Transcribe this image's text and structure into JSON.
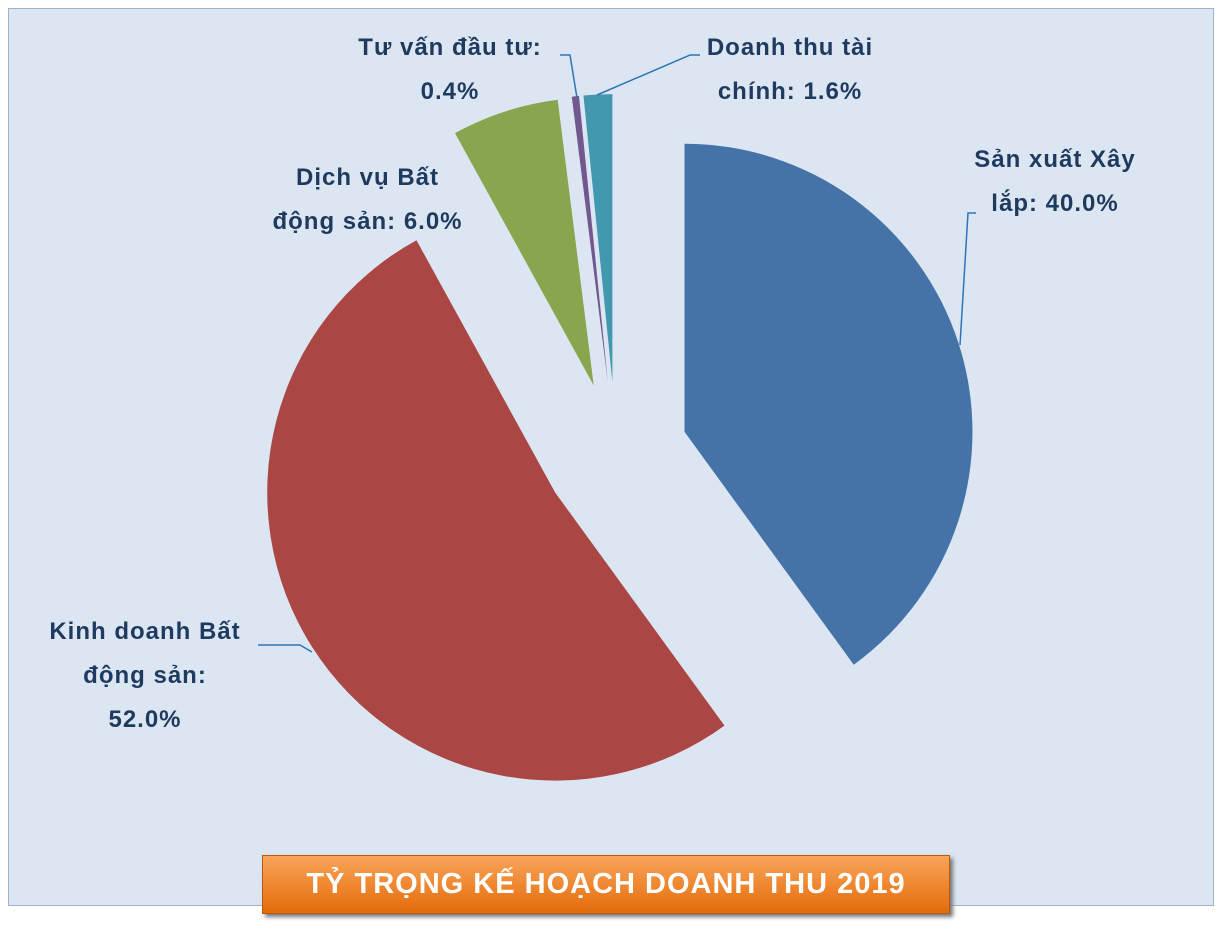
{
  "chart_data": {
    "type": "pie",
    "title": "TỶ TRỌNG KẾ HOẠCH DOANH THU 2019",
    "categories": [
      "Sản xuất Xây lắp:",
      "Kinh doanh Bất động sản:",
      "Dịch vụ Bất động sản:",
      "Tư vấn đầu tư:",
      "Doanh thu tài chính:"
    ],
    "values": [
      40.0,
      52.0,
      6.0,
      0.4,
      1.6
    ],
    "value_labels": [
      "40.0%",
      "52.0%",
      "6.0%",
      "0.4%",
      "1.6%"
    ],
    "colors": [
      "#4572a7",
      "#aa4643",
      "#89a54e",
      "#71588f",
      "#4198af"
    ]
  }
}
